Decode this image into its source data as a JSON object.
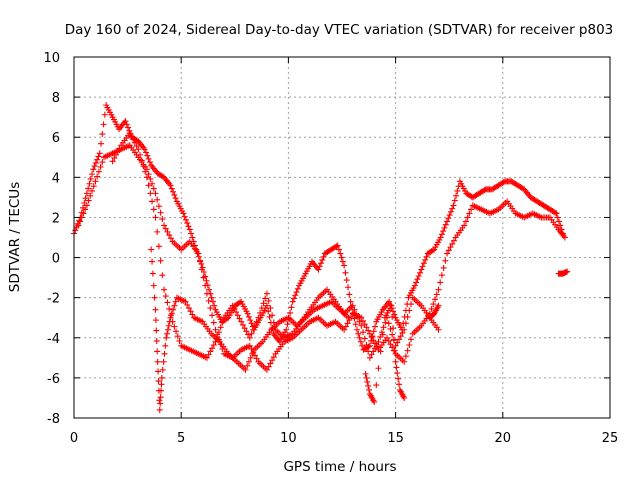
{
  "chart_data": {
    "type": "scatter",
    "title": "Day 160 of 2024, Sidereal Day-to-day VTEC variation (SDTVAR) for receiver p803",
    "xlabel": "GPS time / hours",
    "ylabel": "SDTVAR / TECUs",
    "xlim": [
      0,
      25
    ],
    "ylim": [
      -8,
      10
    ],
    "xticks": [
      "0",
      "5",
      "10",
      "15",
      "20",
      "25"
    ],
    "yticks": [
      "-8",
      "-6",
      "-4",
      "-2",
      "0",
      "2",
      "4",
      "6",
      "8",
      "10"
    ],
    "grid": true,
    "marker": "plus",
    "color": "#ff0000",
    "series": [
      {
        "name": "track-a",
        "x": [
          0.0,
          0.3,
          0.6,
          0.9,
          1.2,
          1.5,
          1.8,
          2.1,
          2.4,
          2.7,
          3.0,
          3.3,
          3.6,
          3.9,
          4.2,
          4.5,
          4.8,
          5.1,
          5.4,
          5.7,
          6.0,
          6.3,
          6.6,
          6.9,
          7.2,
          7.5,
          7.8,
          8.1,
          8.4,
          8.7,
          9.0,
          9.3,
          9.6,
          9.9,
          10.2,
          10.5,
          10.8,
          11.1,
          11.4,
          11.7,
          12.0,
          12.3,
          12.6,
          12.9,
          13.2,
          13.5,
          13.8,
          14.1,
          14.4,
          14.7,
          15.0,
          15.3,
          15.6,
          15.9,
          16.2,
          16.5,
          16.8,
          17.1,
          17.4,
          17.7,
          18.0,
          18.3,
          18.6,
          18.9,
          19.2,
          19.5,
          19.8,
          20.1,
          20.4,
          20.7,
          21.0,
          21.3,
          21.6,
          21.9,
          22.2,
          22.5,
          22.8
        ],
        "y": [
          1.2,
          2.0,
          3.2,
          4.4,
          5.2,
          7.6,
          7.0,
          6.4,
          6.8,
          6.0,
          5.8,
          5.4,
          4.6,
          4.2,
          4.0,
          3.6,
          2.8,
          2.2,
          1.4,
          0.4,
          -0.5,
          -1.6,
          -2.6,
          -3.2,
          -3.0,
          -2.4,
          -2.2,
          -2.8,
          -3.6,
          -3.0,
          -2.4,
          -3.8,
          -4.2,
          -3.6,
          -2.2,
          -1.4,
          -0.8,
          -0.2,
          -0.6,
          0.2,
          0.4,
          0.6,
          -0.4,
          -2.2,
          -3.6,
          -4.6,
          -4.4,
          -3.2,
          -2.6,
          -2.2,
          -3.0,
          -3.6,
          -2.0,
          -1.4,
          -0.6,
          0.2,
          0.4,
          1.0,
          1.8,
          2.6,
          3.8,
          3.2,
          3.0,
          3.2,
          3.4,
          3.4,
          3.6,
          3.8,
          3.8,
          3.6,
          3.4,
          3.0,
          2.8,
          2.6,
          2.4,
          2.2,
          1.2
        ]
      },
      {
        "name": "track-b",
        "x": [
          0.2,
          0.6,
          1.0,
          1.4,
          1.8,
          2.2,
          2.6,
          3.0,
          3.4,
          3.8,
          4.2,
          4.6,
          5.0,
          5.4,
          5.8,
          6.2,
          6.6,
          7.0,
          7.4,
          7.8,
          8.2,
          8.6,
          9.0,
          9.4,
          9.8,
          10.2,
          10.6,
          11.0,
          11.4,
          11.8,
          12.2,
          12.6,
          13.0,
          13.4,
          13.8,
          14.2,
          14.6,
          15.0,
          15.4,
          15.8,
          16.2,
          16.6,
          17.0,
          17.4,
          17.8,
          18.2,
          18.6,
          19.0,
          19.4,
          19.8,
          20.2,
          20.6,
          21.0,
          21.4,
          21.8,
          22.2,
          22.6,
          22.9
        ],
        "y": [
          1.6,
          2.6,
          3.8,
          5.0,
          5.2,
          5.4,
          5.6,
          5.0,
          4.4,
          3.2,
          1.6,
          0.8,
          0.4,
          0.8,
          0.2,
          -1.8,
          -3.6,
          -4.8,
          -5.0,
          -4.6,
          -4.4,
          -5.2,
          -5.6,
          -4.8,
          -4.2,
          -4.0,
          -3.6,
          -3.2,
          -3.0,
          -3.4,
          -3.2,
          -3.6,
          -2.8,
          -3.0,
          -3.8,
          -4.6,
          -4.0,
          -4.8,
          -5.2,
          -3.8,
          -3.4,
          -2.8,
          -1.6,
          0.2,
          1.0,
          1.6,
          2.6,
          2.4,
          2.2,
          2.4,
          2.8,
          2.2,
          2.0,
          2.2,
          2.0,
          2.0,
          1.4,
          1.0
        ]
      },
      {
        "name": "track-c",
        "x": [
          1.8,
          2.2,
          2.6,
          3.0,
          3.4,
          3.8,
          4.2,
          4.6,
          5.0,
          5.4,
          5.8,
          6.2,
          6.6,
          7.0,
          7.4,
          7.8,
          8.2,
          8.6,
          9.0,
          9.4,
          9.8,
          10.2,
          10.6,
          11.0,
          11.4,
          11.8,
          12.2,
          12.6,
          13.0,
          13.4,
          13.8,
          14.2,
          14.6,
          15.0,
          15.4,
          15.8,
          16.2,
          16.6,
          17.0
        ],
        "y": [
          4.8,
          5.6,
          6.2,
          5.4,
          4.0,
          2.0,
          -1.6,
          -3.2,
          -4.4,
          -4.6,
          -4.8,
          -5.0,
          -4.2,
          -3.0,
          -2.4,
          -3.2,
          -4.0,
          -3.0,
          -1.8,
          -3.6,
          -4.0,
          -3.8,
          -3.2,
          -2.6,
          -2.0,
          -1.6,
          -2.2,
          -2.8,
          -2.4,
          -3.4,
          -5.0,
          -4.2,
          -3.0,
          -4.4,
          -3.6,
          -2.0,
          -2.4,
          -3.0,
          -3.6
        ]
      },
      {
        "name": "track-d",
        "x": [
          3.6,
          3.8,
          3.9,
          4.0,
          4.1,
          4.3,
          4.5,
          4.8,
          5.2,
          5.6,
          6.0,
          6.4,
          6.8,
          7.2,
          7.6,
          8.0,
          8.4,
          8.8,
          9.2,
          9.6,
          10.0,
          10.4,
          10.8,
          11.2,
          11.6,
          12.0,
          12.4,
          12.8
        ],
        "y": [
          0.4,
          -2.6,
          -5.2,
          -7.6,
          -6.0,
          -4.0,
          -3.0,
          -2.0,
          -2.2,
          -3.0,
          -3.2,
          -3.8,
          -4.2,
          -4.8,
          -5.2,
          -5.6,
          -4.6,
          -4.2,
          -3.6,
          -3.2,
          -3.0,
          -3.4,
          -3.0,
          -2.6,
          -2.4,
          -2.2,
          -2.6,
          -3.0
        ]
      },
      {
        "name": "track-e",
        "x": [
          13.6,
          13.8,
          14.0,
          14.5,
          14.8,
          15.0,
          15.2,
          15.4,
          16.6,
          16.8,
          17.0,
          22.6,
          22.8,
          23.0
        ],
        "y": [
          -5.8,
          -6.8,
          -7.2,
          -3.0,
          -2.4,
          -5.2,
          -6.6,
          -7.0,
          -3.0,
          -2.8,
          -2.4,
          -0.8,
          -0.8,
          -0.7
        ]
      }
    ]
  }
}
